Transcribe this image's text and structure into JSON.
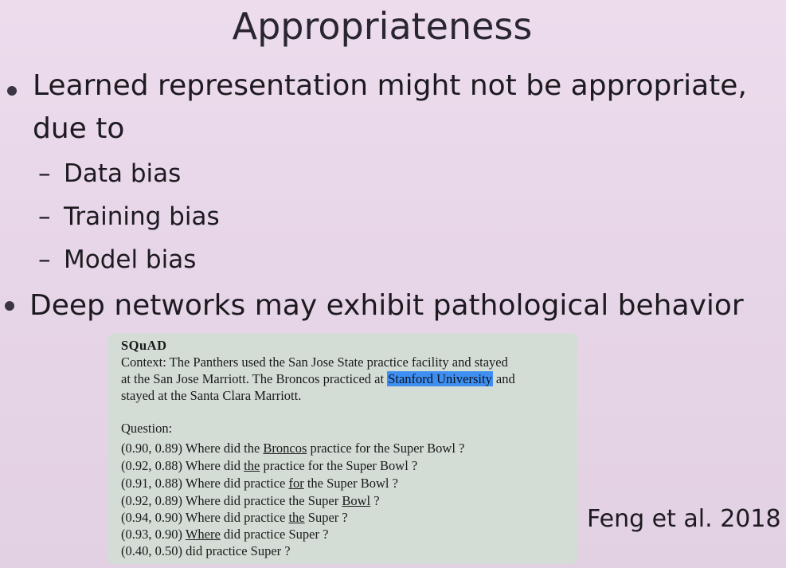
{
  "slide": {
    "title": "Appropriateness",
    "bullets": [
      {
        "line1": "Learned representation might not be appropriate,",
        "line2": "due to"
      },
      {
        "line1": "Deep networks may exhibit pathological behavior"
      }
    ],
    "sub_items": [
      "Data bias",
      "Training bias",
      "Model bias"
    ],
    "dash": "–",
    "citation": "Feng et al. 2018"
  },
  "squad": {
    "heading": "SQuAD",
    "context_line1": "Context: The Panthers used the San Jose State practice facility and stayed",
    "context_line2_a": "at the San Jose Marriott. The Broncos practiced at ",
    "context_line2_hl": "Stanford University",
    "context_line2_b": " and",
    "context_line3": "stayed at the Santa Clara Marriott.",
    "question_label": "Question:",
    "questions": [
      {
        "scores": "(0.90, 0.89)",
        "pre": " Where did the ",
        "u": "Broncos",
        "post": " practice for the Super Bowl ?"
      },
      {
        "scores": "(0.92, 0.88)",
        "pre": " Where did ",
        "u": "the",
        "post": " practice for the Super Bowl ?"
      },
      {
        "scores": "(0.91, 0.88)",
        "pre": " Where did practice ",
        "u": "for",
        "post": " the Super Bowl ?"
      },
      {
        "scores": "(0.92, 0.89)",
        "pre": " Where did practice the Super ",
        "u": "Bowl",
        "post": " ?"
      },
      {
        "scores": "(0.94, 0.90)",
        "pre": " Where did practice ",
        "u": "the",
        "post": " Super ?"
      },
      {
        "scores": "(0.93, 0.90)",
        "pre": " ",
        "u": "Where",
        "post": " did practice Super ?"
      },
      {
        "scores": "(0.40, 0.50)",
        "pre": " did practice Super ?",
        "u": "",
        "post": ""
      }
    ]
  },
  "colors": {
    "background": "#e7d6e8",
    "panel": "#d3ddd6",
    "highlight": "#3f8ff2"
  }
}
